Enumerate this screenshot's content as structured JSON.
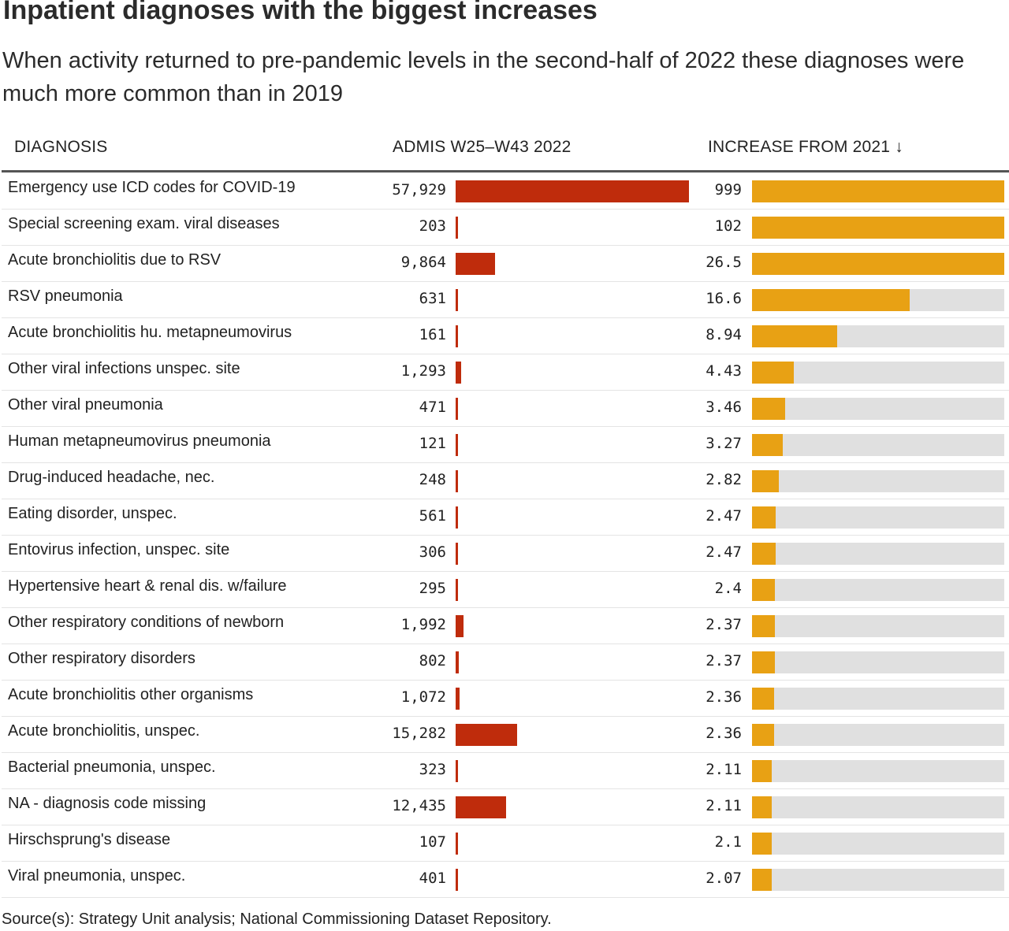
{
  "title": "Inpatient diagnoses with the biggest increases",
  "subtitle": "When activity returned to pre-pandemic levels in the second-half of 2022 these diagnoses were much more common than in 2019",
  "source": "Source(s): Strategy Unit analysis; National Commissioning Dataset Repository.",
  "colors": {
    "admissions_bar": "#bf2c0c",
    "increase_bar": "#e8a114",
    "track": "#e0e0e0"
  },
  "chart_data": {
    "type": "table",
    "columns": [
      "DIAGNOSIS",
      "ADMIS W25–W43 2022",
      "INCREASE FROM 2021 ↓"
    ],
    "sort": "increase descending",
    "admissions_axis_max": 57929,
    "increase_axis_max": 26.5,
    "rows": [
      {
        "diagnosis": "Emergency use ICD codes for COVID-19",
        "admissions": 57929,
        "admissions_label": "57,929",
        "increase": 999,
        "increase_label": "999"
      },
      {
        "diagnosis": "Special screening exam. viral diseases",
        "admissions": 203,
        "admissions_label": "203",
        "increase": 102,
        "increase_label": "102"
      },
      {
        "diagnosis": "Acute bronchiolitis due to RSV",
        "admissions": 9864,
        "admissions_label": "9,864",
        "increase": 26.5,
        "increase_label": "26.5"
      },
      {
        "diagnosis": "RSV pneumonia",
        "admissions": 631,
        "admissions_label": "631",
        "increase": 16.6,
        "increase_label": "16.6"
      },
      {
        "diagnosis": "Acute bronchiolitis hu. metapneumovirus",
        "admissions": 161,
        "admissions_label": "161",
        "increase": 8.94,
        "increase_label": "8.94"
      },
      {
        "diagnosis": "Other viral infections unspec. site",
        "admissions": 1293,
        "admissions_label": "1,293",
        "increase": 4.43,
        "increase_label": "4.43"
      },
      {
        "diagnosis": "Other viral pneumonia",
        "admissions": 471,
        "admissions_label": "471",
        "increase": 3.46,
        "increase_label": "3.46"
      },
      {
        "diagnosis": "Human metapneumovirus pneumonia",
        "admissions": 121,
        "admissions_label": "121",
        "increase": 3.27,
        "increase_label": "3.27"
      },
      {
        "diagnosis": "Drug-induced headache, nec.",
        "admissions": 248,
        "admissions_label": "248",
        "increase": 2.82,
        "increase_label": "2.82"
      },
      {
        "diagnosis": "Eating disorder, unspec.",
        "admissions": 561,
        "admissions_label": "561",
        "increase": 2.47,
        "increase_label": "2.47"
      },
      {
        "diagnosis": "Entovirus infection, unspec. site",
        "admissions": 306,
        "admissions_label": "306",
        "increase": 2.47,
        "increase_label": "2.47"
      },
      {
        "diagnosis": "Hypertensive heart & renal dis. w/failure",
        "admissions": 295,
        "admissions_label": "295",
        "increase": 2.4,
        "increase_label": "2.4"
      },
      {
        "diagnosis": "Other respiratory conditions of newborn",
        "admissions": 1992,
        "admissions_label": "1,992",
        "increase": 2.37,
        "increase_label": "2.37"
      },
      {
        "diagnosis": "Other respiratory disorders",
        "admissions": 802,
        "admissions_label": "802",
        "increase": 2.37,
        "increase_label": "2.37"
      },
      {
        "diagnosis": "Acute bronchiolitis other organisms",
        "admissions": 1072,
        "admissions_label": "1,072",
        "increase": 2.36,
        "increase_label": "2.36"
      },
      {
        "diagnosis": "Acute bronchiolitis, unspec.",
        "admissions": 15282,
        "admissions_label": "15,282",
        "increase": 2.36,
        "increase_label": "2.36"
      },
      {
        "diagnosis": "Bacterial pneumonia, unspec.",
        "admissions": 323,
        "admissions_label": "323",
        "increase": 2.11,
        "increase_label": "2.11"
      },
      {
        "diagnosis": "NA - diagnosis code missing",
        "admissions": 12435,
        "admissions_label": "12,435",
        "increase": 2.11,
        "increase_label": "2.11"
      },
      {
        "diagnosis": "Hirschsprung's disease",
        "admissions": 107,
        "admissions_label": "107",
        "increase": 2.1,
        "increase_label": "2.1"
      },
      {
        "diagnosis": "Viral pneumonia, unspec.",
        "admissions": 401,
        "admissions_label": "401",
        "increase": 2.07,
        "increase_label": "2.07"
      }
    ]
  }
}
